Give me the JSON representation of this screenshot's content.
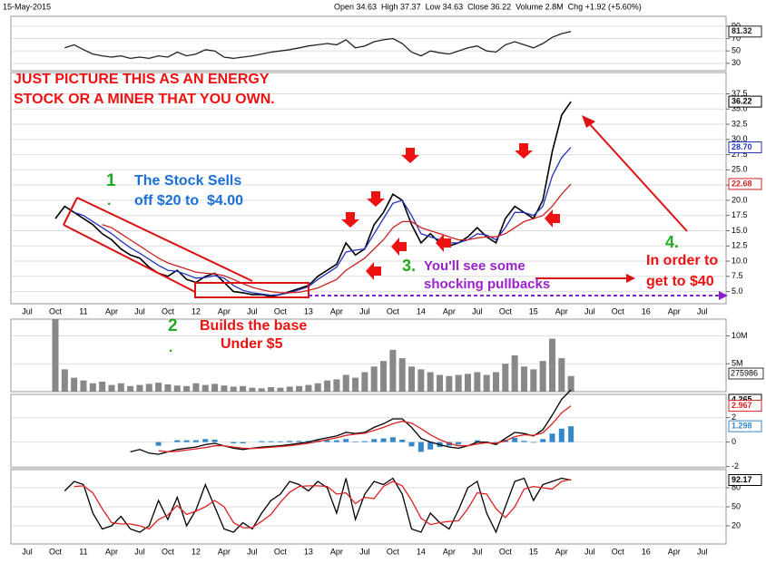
{
  "header": {
    "date": "15-May-2015",
    "quote": "Open 34.63  High 37.37  Low 34.63  Close 36.22  Volume 2.8M  Chg +1.92 (+5.60%)"
  },
  "chart_data": [
    {
      "type": "line",
      "ylim": [
        18,
        106
      ],
      "yticks": [
        30,
        50,
        70,
        90
      ],
      "grid": true,
      "series": [
        {
          "color": "#222222",
          "last_label": "81.32",
          "values": [
            null,
            null,
            null,
            null,
            55,
            60,
            52,
            45,
            42,
            40,
            42,
            38,
            40,
            38,
            42,
            40,
            48,
            42,
            45,
            52,
            50,
            40,
            38,
            40,
            42,
            45,
            48,
            50,
            52,
            55,
            58,
            60,
            62,
            60,
            68,
            55,
            58,
            65,
            68,
            70,
            62,
            48,
            42,
            50,
            47,
            45,
            50,
            55,
            58,
            50,
            48,
            60,
            65,
            60,
            55,
            62,
            72,
            78,
            81.32,
            null,
            null,
            null,
            null,
            null,
            null,
            null,
            null,
            null,
            null,
            null,
            null,
            null,
            null
          ]
        }
      ]
    },
    {
      "type": "line",
      "ylim": [
        3,
        41
      ],
      "grid": true,
      "yticks": [
        {
          "value": 5,
          "label": "5.0"
        },
        7.5,
        {
          "value": 10,
          "label": "10.0"
        },
        12.5,
        {
          "value": 15,
          "label": "15.0"
        },
        17.5,
        {
          "value": 20,
          "label": "20.0"
        },
        22.5,
        {
          "value": 25,
          "label": "25.0"
        },
        27.5,
        {
          "value": 30,
          "label": "30.0"
        },
        32.5,
        {
          "value": 35,
          "label": "35.0"
        },
        37.5
      ],
      "categories": [
        "Jul",
        null,
        null,
        "Oct",
        null,
        null,
        "11",
        null,
        null,
        "Apr",
        null,
        null,
        "Jul",
        null,
        null,
        "Oct",
        null,
        null,
        "12",
        null,
        null,
        "Apr",
        null,
        null,
        "Jul",
        null,
        null,
        "Oct",
        null,
        null,
        "13",
        null,
        null,
        "Apr",
        null,
        null,
        "Jul",
        null,
        null,
        "Oct",
        null,
        null,
        "14",
        null,
        null,
        "Apr",
        null,
        null,
        "Jul",
        null,
        null,
        "Oct",
        null,
        null,
        "15",
        null,
        null,
        "Apr",
        null,
        null,
        "Jul",
        null,
        null,
        "Oct",
        null,
        null,
        "16",
        null,
        null,
        "Apr",
        null,
        null,
        "Jul"
      ],
      "series": [
        {
          "color": "#000000",
          "last_label": "36.22",
          "values": [
            null,
            null,
            null,
            17,
            19,
            18,
            17,
            16,
            14.5,
            13.5,
            12,
            11,
            10.5,
            9,
            8,
            7.5,
            8.5,
            7,
            6.5,
            7.5,
            8,
            6.5,
            5,
            4.8,
            4.5,
            4.5,
            4.2,
            4.5,
            5,
            5.5,
            6,
            7.5,
            8.5,
            9.5,
            13,
            11,
            12,
            16,
            18,
            21,
            20,
            16,
            13,
            14.5,
            13,
            12.5,
            13,
            14,
            15.5,
            14,
            13,
            17,
            19,
            18,
            17,
            20,
            28,
            34,
            36.22,
            null,
            null,
            null,
            null,
            null,
            null,
            null,
            null,
            null,
            null,
            null,
            null,
            null,
            null
          ]
        },
        {
          "color": "#2233bb",
          "last_label": "28.70",
          "values": [
            null,
            null,
            null,
            null,
            null,
            18,
            17.5,
            16.5,
            15.5,
            14.5,
            13.3,
            12.2,
            11.3,
            10.3,
            9.3,
            8.5,
            8.3,
            7.8,
            7.2,
            7.3,
            7.6,
            7.2,
            6,
            5.2,
            4.8,
            4.6,
            4.4,
            4.5,
            4.8,
            5.3,
            5.8,
            7,
            8,
            9,
            11.5,
            11.8,
            12,
            14.5,
            17,
            19.5,
            20,
            17.5,
            14.5,
            14,
            13.5,
            13,
            13,
            13.5,
            14.5,
            14.3,
            13.5,
            15.5,
            18,
            18,
            17.5,
            19,
            24,
            27,
            28.7,
            null,
            null,
            null,
            null,
            null,
            null,
            null,
            null,
            null,
            null,
            null,
            null,
            null,
            null
          ]
        },
        {
          "color": "#cc2222",
          "last_label": "22.68",
          "values": [
            null,
            null,
            null,
            null,
            null,
            null,
            null,
            null,
            16,
            15.5,
            14.5,
            13.5,
            12.5,
            11.5,
            10.5,
            9.7,
            9.2,
            8.7,
            8.2,
            8,
            7.9,
            7.6,
            7,
            6.3,
            5.7,
            5.3,
            5,
            4.8,
            4.8,
            4.9,
            5.2,
            5.6,
            6.3,
            7,
            8.5,
            9.5,
            10.5,
            12,
            13.5,
            15.5,
            16.5,
            16.5,
            15.5,
            15,
            14.5,
            14,
            13.5,
            13.5,
            13.8,
            14,
            14,
            14.5,
            15.5,
            16.5,
            17,
            17.5,
            19,
            21,
            22.68,
            null,
            null,
            null,
            null,
            null,
            null,
            null,
            null,
            null,
            null,
            null,
            null,
            null,
            null
          ]
        }
      ],
      "annotations": [
        "JUST PICTURE THIS AS AN ENERGY",
        "STOCK OR A MINER THAT YOU OWN.",
        "1",
        ".",
        "The Stock Sells",
        "off $20 to  $4.00",
        "2",
        ".",
        "Builds the base",
        "Under $5",
        "3.",
        "You'll see some",
        "shocking pullbacks",
        "4.",
        "In order to",
        "get to $40"
      ]
    },
    {
      "type": "bar",
      "ylim": [
        0,
        13000000
      ],
      "grid": true,
      "current_label": "275986",
      "yticks": [
        {
          "value": 5000000,
          "label": "5M"
        },
        {
          "value": 10000000,
          "label": "10M"
        }
      ],
      "series": [
        {
          "color": "#888888",
          "values": [
            null,
            null,
            null,
            13000000,
            4000000,
            2500000,
            2000000,
            1500000,
            1800000,
            1200000,
            1500000,
            1000000,
            1200000,
            1400000,
            1600000,
            1300000,
            1100000,
            1000000,
            1500000,
            1200000,
            1400000,
            1100000,
            900000,
            1000000,
            700000,
            600000,
            800000,
            700000,
            900000,
            1000000,
            1200000,
            1500000,
            2000000,
            2200000,
            3000000,
            2500000,
            3500000,
            4500000,
            5500000,
            7500000,
            6000000,
            4500000,
            4000000,
            3500000,
            3000000,
            2800000,
            3000000,
            3200000,
            3500000,
            3000000,
            3500000,
            5000000,
            6500000,
            4500000,
            4000000,
            5500000,
            9500000,
            6000000,
            2800000,
            null,
            null,
            null,
            null,
            null,
            null,
            null,
            null,
            null,
            null,
            null,
            null,
            null,
            null
          ]
        }
      ]
    },
    {
      "type": "line",
      "ylim": [
        -2.1,
        3.9
      ],
      "yticks": [
        -2,
        0,
        2
      ],
      "grid": true,
      "series": [
        {
          "style": "bar",
          "color": "#3388cc",
          "last_label": "1.298",
          "values": [
            null,
            null,
            null,
            null,
            null,
            null,
            null,
            null,
            null,
            null,
            null,
            null,
            null,
            null,
            -0.3,
            0,
            0.15,
            0.15,
            0.15,
            0.25,
            0.2,
            0,
            -0.1,
            -0.1,
            0,
            0.08,
            0.07,
            0.06,
            0.1,
            0.1,
            0.1,
            0.15,
            0.15,
            0.15,
            0.25,
            0.05,
            0.08,
            0.25,
            0.3,
            0.4,
            0.2,
            -0.35,
            -0.8,
            -0.6,
            -0.4,
            -0.3,
            -0.2,
            0,
            0.15,
            0.05,
            -0.1,
            0.2,
            0.35,
            0.1,
            -0.05,
            0.25,
            0.7,
            1.1,
            1.298,
            null,
            null,
            null,
            null,
            null,
            null,
            null,
            null,
            null,
            null,
            null,
            null,
            null,
            null
          ]
        },
        {
          "color": "#000000",
          "last_label": "4.265",
          "values": [
            null,
            null,
            null,
            null,
            null,
            null,
            null,
            null,
            null,
            null,
            null,
            -0.8,
            -0.6,
            -0.9,
            -1,
            -0.8,
            -0.6,
            -0.5,
            -0.4,
            -0.2,
            -0.1,
            -0.3,
            -0.5,
            -0.6,
            -0.5,
            -0.4,
            -0.35,
            -0.3,
            -0.2,
            -0.1,
            0,
            0.2,
            0.35,
            0.5,
            0.8,
            0.7,
            0.8,
            1.2,
            1.5,
            1.9,
            1.9,
            1.2,
            0.3,
            0,
            -0.2,
            -0.4,
            -0.5,
            -0.3,
            0,
            0,
            -0.2,
            0.3,
            0.8,
            0.7,
            0.5,
            1,
            2.2,
            3.5,
            4.265,
            null,
            null,
            null,
            null,
            null,
            null,
            null,
            null,
            null,
            null,
            null,
            null,
            null,
            null
          ]
        },
        {
          "color": "#dd2222",
          "last_label": "2.967",
          "values": [
            null,
            null,
            null,
            null,
            null,
            null,
            null,
            null,
            null,
            null,
            null,
            null,
            null,
            null,
            -0.7,
            -0.8,
            -0.75,
            -0.65,
            -0.55,
            -0.45,
            -0.3,
            -0.3,
            -0.4,
            -0.5,
            -0.52,
            -0.48,
            -0.42,
            -0.36,
            -0.3,
            -0.2,
            -0.1,
            0.05,
            0.2,
            0.35,
            0.55,
            0.65,
            0.72,
            0.95,
            1.2,
            1.5,
            1.7,
            1.55,
            1.1,
            0.6,
            0.2,
            -0.1,
            -0.3,
            -0.3,
            -0.15,
            -0.05,
            -0.1,
            0.1,
            0.45,
            0.6,
            0.55,
            0.75,
            1.5,
            2.4,
            2.967,
            null,
            null,
            null,
            null,
            null,
            null,
            null,
            null,
            null,
            null,
            null,
            null,
            null,
            null
          ]
        }
      ]
    },
    {
      "type": "line",
      "ylim": [
        -8.6,
        108.6
      ],
      "yticks": [
        20,
        50,
        80
      ],
      "grid": true,
      "categories": [
        "Jul",
        null,
        null,
        "Oct",
        null,
        null,
        "11",
        null,
        null,
        "Apr",
        null,
        null,
        "Jul",
        null,
        null,
        "Oct",
        null,
        null,
        "12",
        null,
        null,
        "Apr",
        null,
        null,
        "Jul",
        null,
        null,
        "Oct",
        null,
        null,
        "13",
        null,
        null,
        "Apr",
        null,
        null,
        "Jul",
        null,
        null,
        "Oct",
        null,
        null,
        "14",
        null,
        null,
        "Apr",
        null,
        null,
        "Jul",
        null,
        null,
        "Oct",
        null,
        null,
        "15",
        null,
        null,
        "Apr",
        null,
        null,
        "Jul",
        null,
        null,
        "Oct",
        null,
        null,
        "16",
        null,
        null,
        "Apr",
        null,
        null,
        "Jul"
      ],
      "series": [
        {
          "color": "#000000",
          "last_label": "92.17",
          "values": [
            null,
            null,
            null,
            null,
            75,
            90,
            85,
            40,
            15,
            20,
            35,
            15,
            10,
            20,
            60,
            30,
            65,
            20,
            45,
            85,
            50,
            15,
            10,
            25,
            15,
            40,
            60,
            70,
            90,
            85,
            75,
            90,
            80,
            40,
            95,
            30,
            70,
            90,
            85,
            95,
            70,
            15,
            10,
            40,
            25,
            15,
            45,
            80,
            90,
            40,
            10,
            50,
            90,
            95,
            60,
            85,
            90,
            95,
            92.17,
            null,
            null,
            null,
            null,
            null,
            null,
            null,
            null,
            null,
            null,
            null,
            null,
            null,
            null
          ]
        },
        {
          "color": "#dd2222",
          "values": [
            null,
            null,
            null,
            null,
            null,
            82,
            83,
            72,
            47,
            25,
            23,
            23,
            20,
            15,
            30,
            37,
            52,
            38,
            43,
            50,
            60,
            50,
            25,
            17,
            17,
            27,
            38,
            57,
            73,
            82,
            83,
            83,
            82,
            70,
            72,
            55,
            65,
            63,
            82,
            90,
            83,
            60,
            32,
            22,
            25,
            27,
            28,
            47,
            72,
            70,
            47,
            33,
            50,
            78,
            82,
            80,
            78,
            90,
            93,
            null,
            null,
            null,
            null,
            null,
            null,
            null,
            null,
            null,
            null,
            null,
            null,
            null,
            null
          ]
        }
      ]
    }
  ]
}
